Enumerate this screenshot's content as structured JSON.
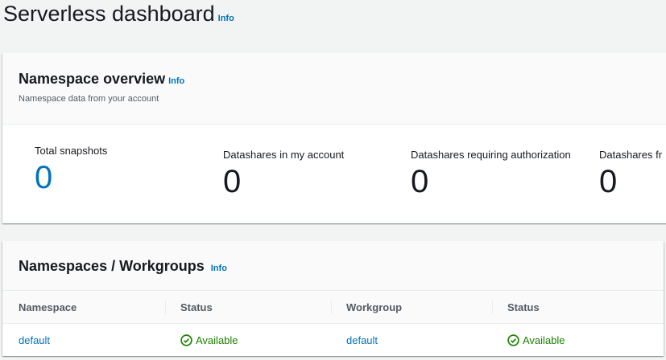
{
  "page": {
    "title": "Serverless dashboard",
    "info": "Info"
  },
  "overview": {
    "title": "Namespace overview",
    "info": "Info",
    "subtitle": "Namespace data from your account",
    "metrics": [
      {
        "label": "Total snapshots",
        "value": "0"
      },
      {
        "label": "Datashares in my account",
        "value": "0"
      },
      {
        "label": "Datashares requiring authorization",
        "value": "0"
      },
      {
        "label": "Datashares fr",
        "value": "0"
      }
    ]
  },
  "namespaces": {
    "title": "Namespaces / Workgroups",
    "info": "Info",
    "columns": [
      "Namespace",
      "Status",
      "Workgroup",
      "Status"
    ],
    "rows": [
      {
        "namespace": "default",
        "ns_status": "Available",
        "workgroup": "default",
        "wg_status": "Available"
      }
    ]
  },
  "colors": {
    "link": "#0073bb",
    "success": "#1d8102"
  }
}
